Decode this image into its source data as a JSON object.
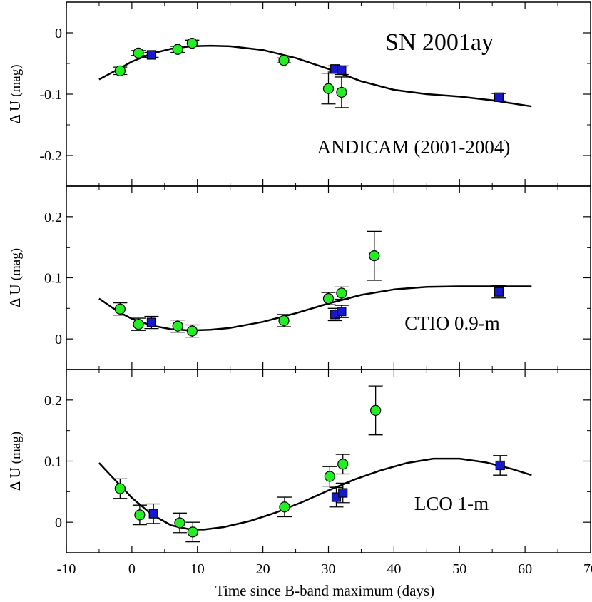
{
  "chart_data": {
    "type": "scatter",
    "title": "SN 2001ay",
    "xlabel": "Time since B-band maximum (days)",
    "xlim": [
      -10,
      70
    ],
    "x_ticks": [
      -10,
      0,
      10,
      20,
      30,
      40,
      50,
      60,
      70
    ],
    "marker_colors": {
      "circle": "#22ee22",
      "square": "#1818cc"
    },
    "panels": [
      {
        "annotation": "ANDICAM (2001-2004)",
        "ylabel_delta": "Δ U",
        "ylabel_unit": "(mag)",
        "ylim": [
          -0.25,
          0.05
        ],
        "y_ticks": [
          -0.2,
          -0.1,
          0
        ],
        "y_tick_labels": [
          "-0.2",
          "-0.1",
          "0"
        ],
        "series": [
          {
            "name": "circles",
            "marker": "circle",
            "points": [
              {
                "x": -1.8,
                "y": -0.062,
                "err": 0.006
              },
              {
                "x": 1.0,
                "y": -0.033,
                "err": 0.004
              },
              {
                "x": 7.0,
                "y": -0.027,
                "err": 0.005
              },
              {
                "x": 9.2,
                "y": -0.017,
                "err": 0.005
              },
              {
                "x": 23.2,
                "y": -0.045,
                "err": 0.004
              },
              {
                "x": 30.0,
                "y": -0.091,
                "err": 0.025
              },
              {
                "x": 32.0,
                "y": -0.097,
                "err": 0.025
              }
            ]
          },
          {
            "name": "squares",
            "marker": "square",
            "points": [
              {
                "x": 3.0,
                "y": -0.036,
                "err": 0.004
              },
              {
                "x": 31.0,
                "y": -0.059,
                "err": 0.005
              },
              {
                "x": 32.0,
                "y": -0.061,
                "err": 0.007
              },
              {
                "x": 56.0,
                "y": -0.105,
                "err": 0.006
              }
            ]
          }
        ],
        "curve": {
          "x": [
            -5,
            -2,
            0,
            3,
            6,
            9,
            12,
            15,
            20,
            25,
            30,
            35,
            40,
            45,
            50,
            55,
            61
          ],
          "y": [
            -0.076,
            -0.059,
            -0.047,
            -0.034,
            -0.026,
            -0.022,
            -0.021,
            -0.022,
            -0.028,
            -0.041,
            -0.059,
            -0.079,
            -0.093,
            -0.1,
            -0.104,
            -0.11,
            -0.12
          ]
        }
      },
      {
        "annotation": "CTIO 0.9-m",
        "ylabel_delta": "Δ U",
        "ylabel_unit": "(mag)",
        "ylim": [
          -0.05,
          0.25
        ],
        "y_ticks": [
          0,
          0.1,
          0.2
        ],
        "y_tick_labels": [
          "0",
          "0.1",
          "0.2"
        ],
        "series": [
          {
            "name": "circles",
            "marker": "circle",
            "points": [
              {
                "x": -1.8,
                "y": 0.049,
                "err": 0.01
              },
              {
                "x": 1.0,
                "y": 0.024,
                "err": 0.01
              },
              {
                "x": 7.0,
                "y": 0.021,
                "err": 0.01
              },
              {
                "x": 9.2,
                "y": 0.013,
                "err": 0.01
              },
              {
                "x": 23.2,
                "y": 0.03,
                "err": 0.01
              },
              {
                "x": 30.0,
                "y": 0.066,
                "err": 0.01
              },
              {
                "x": 32.0,
                "y": 0.075,
                "err": 0.01
              },
              {
                "x": 37.0,
                "y": 0.136,
                "err": 0.04
              }
            ]
          },
          {
            "name": "squares",
            "marker": "square",
            "points": [
              {
                "x": 3.0,
                "y": 0.027,
                "err": 0.01
              },
              {
                "x": 31.0,
                "y": 0.04,
                "err": 0.01
              },
              {
                "x": 32.0,
                "y": 0.045,
                "err": 0.01
              },
              {
                "x": 56.0,
                "y": 0.077,
                "err": 0.01
              }
            ]
          }
        ],
        "curve": {
          "x": [
            -5,
            -2,
            0,
            3,
            6,
            9,
            12,
            15,
            20,
            25,
            30,
            35,
            40,
            45,
            50,
            55,
            61
          ],
          "y": [
            0.066,
            0.044,
            0.033,
            0.022,
            0.016,
            0.014,
            0.015,
            0.018,
            0.028,
            0.042,
            0.058,
            0.072,
            0.081,
            0.085,
            0.086,
            0.086,
            0.086
          ]
        }
      },
      {
        "annotation": "LCO 1-m",
        "ylabel_delta": "Δ U",
        "ylabel_unit": "(mag)",
        "ylim": [
          -0.05,
          0.25
        ],
        "y_ticks": [
          0,
          0.1,
          0.2
        ],
        "y_tick_labels": [
          "0",
          "0.1",
          "0.2"
        ],
        "series": [
          {
            "name": "circles",
            "marker": "circle",
            "points": [
              {
                "x": -1.8,
                "y": 0.055,
                "err": 0.016
              },
              {
                "x": 1.2,
                "y": 0.012,
                "err": 0.016
              },
              {
                "x": 7.3,
                "y": -0.001,
                "err": 0.016
              },
              {
                "x": 9.3,
                "y": -0.016,
                "err": 0.016
              },
              {
                "x": 23.3,
                "y": 0.025,
                "err": 0.016
              },
              {
                "x": 30.2,
                "y": 0.075,
                "err": 0.016
              },
              {
                "x": 32.2,
                "y": 0.095,
                "err": 0.016
              },
              {
                "x": 37.2,
                "y": 0.183,
                "err": 0.04
              }
            ]
          },
          {
            "name": "squares",
            "marker": "square",
            "points": [
              {
                "x": 3.3,
                "y": 0.014,
                "err": 0.016
              },
              {
                "x": 31.2,
                "y": 0.041,
                "err": 0.016
              },
              {
                "x": 32.2,
                "y": 0.048,
                "err": 0.016
              },
              {
                "x": 56.2,
                "y": 0.093,
                "err": 0.016
              }
            ]
          }
        ],
        "curve": {
          "x": [
            -5,
            -3,
            0,
            3,
            6,
            9,
            11,
            14,
            18,
            22,
            26,
            30,
            34,
            38,
            42,
            46,
            50,
            54,
            58,
            61
          ],
          "y": [
            0.097,
            0.074,
            0.04,
            0.013,
            -0.005,
            -0.012,
            -0.012,
            -0.008,
            0.002,
            0.016,
            0.033,
            0.052,
            0.07,
            0.085,
            0.097,
            0.104,
            0.104,
            0.098,
            0.087,
            0.077
          ]
        }
      }
    ]
  }
}
